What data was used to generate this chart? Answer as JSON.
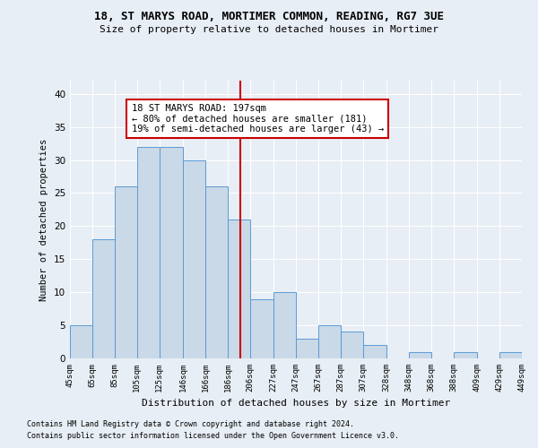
{
  "title1": "18, ST MARYS ROAD, MORTIMER COMMON, READING, RG7 3UE",
  "title2": "Size of property relative to detached houses in Mortimer",
  "xlabel": "Distribution of detached houses by size in Mortimer",
  "ylabel": "Number of detached properties",
  "bin_labels": [
    "45sqm",
    "65sqm",
    "85sqm",
    "105sqm",
    "125sqm",
    "146sqm",
    "166sqm",
    "186sqm",
    "206sqm",
    "227sqm",
    "247sqm",
    "267sqm",
    "287sqm",
    "307sqm",
    "328sqm",
    "348sqm",
    "368sqm",
    "388sqm",
    "409sqm",
    "429sqm",
    "449sqm"
  ],
  "bin_edges": [
    45,
    65,
    85,
    105,
    125,
    146,
    166,
    186,
    206,
    227,
    247,
    267,
    287,
    307,
    328,
    348,
    368,
    388,
    409,
    429,
    449
  ],
  "bar_heights": [
    5,
    18,
    26,
    32,
    32,
    30,
    26,
    21,
    9,
    10,
    3,
    5,
    4,
    2,
    0,
    1,
    0,
    1,
    0,
    1
  ],
  "bar_color": "#c9d9e8",
  "bar_edge_color": "#5b9bd5",
  "property_line_x": 197,
  "property_line_color": "#cc0000",
  "annotation_text": "18 ST MARYS ROAD: 197sqm\n← 80% of detached houses are smaller (181)\n19% of semi-detached houses are larger (43) →",
  "annotation_box_color": "#ffffff",
  "annotation_box_edge_color": "#cc0000",
  "ylim": [
    0,
    42
  ],
  "yticks": [
    0,
    5,
    10,
    15,
    20,
    25,
    30,
    35,
    40
  ],
  "background_color": "#e8eef5",
  "footnote1": "Contains HM Land Registry data © Crown copyright and database right 2024.",
  "footnote2": "Contains public sector information licensed under the Open Government Licence v3.0."
}
